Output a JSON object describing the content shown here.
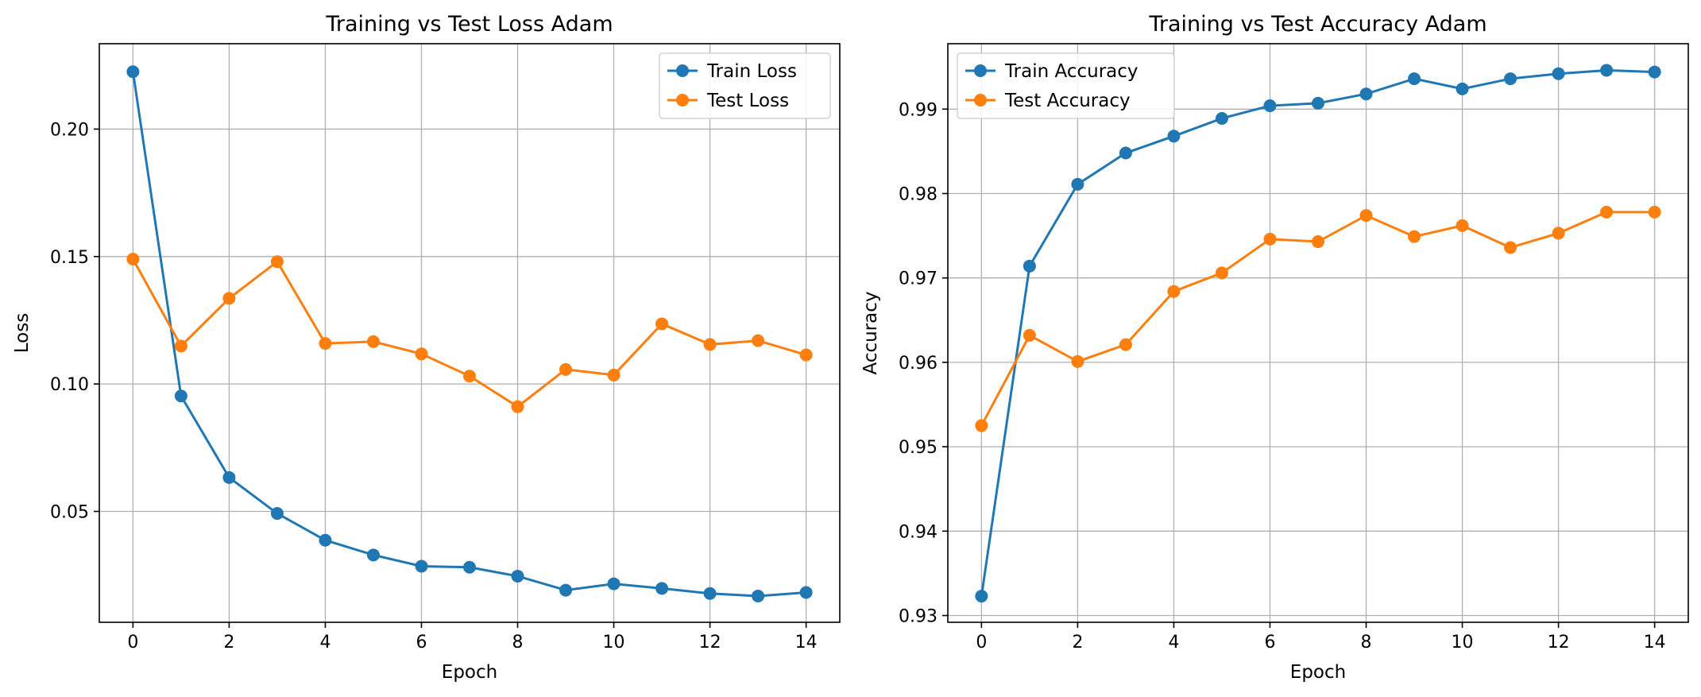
{
  "chart_data": [
    {
      "type": "line",
      "title": "Training vs Test Loss Adam",
      "xlabel": "Epoch",
      "ylabel": "Loss",
      "xlim": [
        -0.7,
        14.7
      ],
      "ylim": [
        0.0065,
        0.2335
      ],
      "xticks": [
        0,
        2,
        4,
        6,
        8,
        10,
        12,
        14
      ],
      "yticks": [
        0.05,
        0.1,
        0.15,
        0.2
      ],
      "ytick_labels": [
        "0.05",
        "0.10",
        "0.15",
        "0.20"
      ],
      "grid": true,
      "legend_position": "upper right",
      "x": [
        0,
        1,
        2,
        3,
        4,
        5,
        6,
        7,
        8,
        9,
        10,
        11,
        12,
        13,
        14
      ],
      "series": [
        {
          "name": "Train Loss",
          "color": "#1f77b4",
          "values": [
            0.2225,
            0.0953,
            0.0633,
            0.0492,
            0.0387,
            0.0329,
            0.0285,
            0.0281,
            0.0246,
            0.0191,
            0.0216,
            0.0198,
            0.0178,
            0.0168,
            0.0182
          ]
        },
        {
          "name": "Test Loss",
          "color": "#ff7f0e",
          "values": [
            0.149,
            0.1149,
            0.1336,
            0.148,
            0.1159,
            0.1166,
            0.1118,
            0.1031,
            0.0911,
            0.1057,
            0.1035,
            0.1236,
            0.1155,
            0.117,
            0.1114
          ]
        }
      ]
    },
    {
      "type": "line",
      "title": "Training vs Test Accuracy Adam",
      "xlabel": "Epoch",
      "ylabel": "Accuracy",
      "xlim": [
        -0.7,
        14.7
      ],
      "ylim": [
        0.9292,
        0.99775
      ],
      "xticks": [
        0,
        2,
        4,
        6,
        8,
        10,
        12,
        14
      ],
      "yticks": [
        0.93,
        0.94,
        0.95,
        0.96,
        0.97,
        0.98,
        0.99
      ],
      "ytick_labels": [
        "0.93",
        "0.94",
        "0.95",
        "0.96",
        "0.97",
        "0.98",
        "0.99"
      ],
      "grid": true,
      "legend_position": "upper left",
      "x": [
        0,
        1,
        2,
        3,
        4,
        5,
        6,
        7,
        8,
        9,
        10,
        11,
        12,
        13,
        14
      ],
      "series": [
        {
          "name": "Train Accuracy",
          "color": "#1f77b4",
          "values": [
            0.9323,
            0.9714,
            0.9811,
            0.9848,
            0.9868,
            0.9889,
            0.9904,
            0.9907,
            0.9918,
            0.9936,
            0.9924,
            0.9936,
            0.9942,
            0.9946,
            0.9944
          ]
        },
        {
          "name": "Test Accuracy",
          "color": "#ff7f0e",
          "values": [
            0.9525,
            0.9632,
            0.9601,
            0.9621,
            0.9684,
            0.9706,
            0.9746,
            0.9743,
            0.9774,
            0.9749,
            0.9762,
            0.9736,
            0.9753,
            0.9778,
            0.9778
          ]
        }
      ]
    }
  ]
}
